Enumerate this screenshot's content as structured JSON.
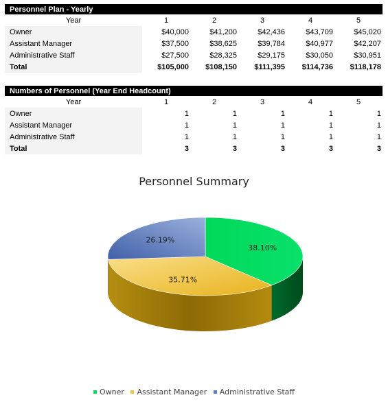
{
  "plan": {
    "title": "Personnel Plan - Yearly",
    "header_label": "Year",
    "years": [
      "1",
      "2",
      "3",
      "4",
      "5"
    ],
    "rows": [
      {
        "label": "Owner",
        "values": [
          "$40,000",
          "$41,200",
          "$42,436",
          "$43,709",
          "$45,020"
        ]
      },
      {
        "label": "Assistant Manager",
        "values": [
          "$37,500",
          "$38,625",
          "$39,784",
          "$40,977",
          "$42,207"
        ]
      },
      {
        "label": "Administrative Staff",
        "values": [
          "$27,500",
          "$28,325",
          "$29,175",
          "$30,050",
          "$30,951"
        ]
      }
    ],
    "total": {
      "label": "Total",
      "values": [
        "$105,000",
        "$108,150",
        "$111,395",
        "$114,736",
        "$118,178"
      ]
    }
  },
  "headcount": {
    "title": "Numbers of Personnel (Year End Headcount)",
    "header_label": "Year",
    "years": [
      "1",
      "2",
      "3",
      "4",
      "5"
    ],
    "rows": [
      {
        "label": "Owner",
        "values": [
          "1",
          "1",
          "1",
          "1",
          "1"
        ]
      },
      {
        "label": "Assistant Manager",
        "values": [
          "1",
          "1",
          "1",
          "1",
          "1"
        ]
      },
      {
        "label": "Administrative Staff",
        "values": [
          "1",
          "1",
          "1",
          "1",
          "1"
        ]
      }
    ],
    "total": {
      "label": "Total",
      "values": [
        "3",
        "3",
        "3",
        "3",
        "3"
      ]
    }
  },
  "chart_data": {
    "type": "pie",
    "title": "Personnel Summary",
    "categories": [
      "Owner",
      "Assistant Manager",
      "Administrative Staff"
    ],
    "values": [
      38.1,
      35.71,
      26.19
    ],
    "labels": [
      "38.10%",
      "35.71%",
      "26.19%"
    ],
    "colors": [
      "#00e060",
      "#f5c342",
      "#5b7fc4"
    ],
    "legend_position": "bottom",
    "style": "3d"
  }
}
